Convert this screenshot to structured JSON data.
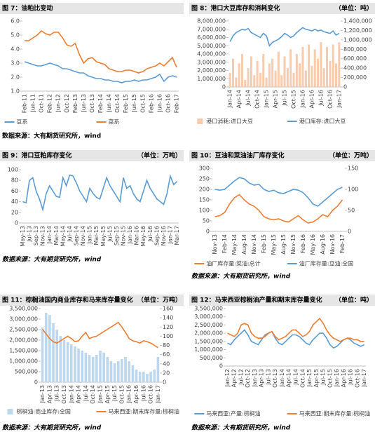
{
  "chart_data": [
    {
      "type": "line",
      "title": "图 7：油粕比变动",
      "source": "数据来源：大有期货研究所，wind",
      "categories": [
        "Feb-11",
        null,
        "Jun-11",
        null,
        "Oct-11",
        null,
        "Feb-12",
        null,
        "Jun-12",
        null,
        "Oct-12",
        null,
        "Feb-13",
        null,
        "Jun-13",
        null,
        "Oct-13",
        null,
        "Feb-14",
        null,
        "Jun-14",
        null,
        "Oct-14",
        null,
        "Feb-15",
        null,
        "Jun-15",
        null,
        "Oct-15",
        null,
        "Feb-16",
        null,
        "Jun-16",
        null,
        "Oct-16",
        null,
        "Feb-17"
      ],
      "series": [
        {
          "name": "豆系",
          "color": "#5b9bd5",
          "values": [
            3.1,
            3.0,
            2.9,
            2.8,
            2.8,
            2.9,
            3.0,
            2.9,
            2.8,
            2.6,
            2.6,
            2.5,
            2.4,
            2.3,
            2.3,
            2.1,
            2.0,
            1.9,
            1.9,
            1.8,
            1.8,
            1.7,
            1.7,
            1.6,
            1.7,
            1.7,
            1.8,
            1.7,
            1.8,
            1.8,
            1.9,
            2.0,
            2.2,
            1.7,
            2.0,
            2.1,
            2.0
          ]
        },
        {
          "name": "菜系",
          "color": "#ed7d31",
          "values": [
            4.6,
            4.6,
            4.8,
            5.0,
            5.3,
            5.1,
            5.0,
            5.2,
            5.2,
            4.8,
            4.3,
            4.2,
            4.4,
            3.6,
            3.0,
            3.3,
            3.4,
            3.1,
            3.0,
            2.9,
            2.6,
            2.5,
            2.4,
            2.4,
            2.5,
            2.5,
            2.4,
            2.3,
            2.4,
            2.6,
            2.7,
            2.8,
            3.0,
            2.8,
            3.1,
            3.4,
            2.7
          ]
        }
      ],
      "ylim": [
        1,
        6
      ],
      "yticks": [
        {
          "value": 1,
          "label": "1.0"
        },
        {
          "value": 2,
          "label": "2.0"
        },
        {
          "value": 3,
          "label": "3.0"
        },
        {
          "value": 4,
          "label": "4.0"
        },
        {
          "value": 5,
          "label": "5.0"
        },
        {
          "value": 6,
          "label": "6.0"
        }
      ]
    },
    {
      "type": "combo",
      "title": "图 8：港口大豆库存和消耗变化",
      "unit": "（单位：吨）",
      "categories": [
        "Jan-14",
        null,
        null,
        "Apr-14",
        null,
        null,
        "Jul-14",
        null,
        null,
        "Oct-14",
        null,
        null,
        "Jan-15",
        null,
        null,
        "Apr-15",
        null,
        null,
        "Jul-15",
        null,
        null,
        "Oct-15",
        null,
        null,
        "Jan-16",
        null,
        null,
        "Apr-16",
        null,
        null,
        "Jul-16",
        null,
        null,
        "Oct-16",
        null,
        null,
        "Jan-17"
      ],
      "series": [
        {
          "name": "港口消耗:进口大豆",
          "type": "bar",
          "axis": "y2",
          "color": "#f8cbad",
          "values": [
            300000,
            600000,
            200000,
            500000,
            700000,
            150000,
            400000,
            650000,
            250000,
            550000,
            300000,
            700000,
            200000,
            500000,
            600000,
            350000,
            750000,
            250000,
            650000,
            400000,
            800000,
            300000,
            700000,
            500000,
            850000,
            350000,
            900000,
            450000,
            800000,
            600000,
            950000,
            400000,
            850000,
            550000,
            900000,
            500000,
            950000
          ]
        },
        {
          "name": "港口库存:进口大豆",
          "type": "line",
          "color": "#5b9bd5",
          "values": [
            5500000,
            6200000,
            6600000,
            6800000,
            7000000,
            6900000,
            7100000,
            6600000,
            6400000,
            6200000,
            6000000,
            6500000,
            6200000,
            5000000,
            5400000,
            5600000,
            5800000,
            6100000,
            6500000,
            6300000,
            6000000,
            6200000,
            6600000,
            6900000,
            7200000,
            7000000,
            6900000,
            6800000,
            7000000,
            6800000,
            6900000,
            6700000,
            6600000,
            6500000,
            6800000,
            6300000,
            6500000
          ]
        }
      ],
      "ylim": [
        0,
        8000000
      ],
      "yticks": [
        0,
        {
          "value": 1000000,
          "label": "1,000,000"
        },
        {
          "value": 2000000,
          "label": "2,000,000"
        },
        {
          "value": 3000000,
          "label": "3,000,000"
        },
        {
          "value": 4000000,
          "label": "4,000,000"
        },
        {
          "value": 5000000,
          "label": "5,000,000"
        },
        {
          "value": 6000000,
          "label": "6,000,000"
        },
        {
          "value": 7000000,
          "label": "7,000,000"
        },
        {
          "value": 8000000,
          "label": "8,000,000"
        }
      ],
      "y2lim": [
        0,
        1400000
      ],
      "y2ticks": [
        0,
        {
          "value": 200000,
          "label": "200,000"
        },
        {
          "value": 400000,
          "label": "400,000"
        },
        {
          "value": 600000,
          "label": "600,000"
        },
        {
          "value": 800000,
          "label": "800,000"
        },
        {
          "value": 1000000,
          "label": "1,000,000"
        },
        {
          "value": 1200000,
          "label": "1,200,000"
        },
        {
          "value": 1400000,
          "label": "1,400,000"
        }
      ]
    },
    {
      "type": "line",
      "title": "图 9：港口豆粕库存变化",
      "unit": "（单位：万吨）",
      "source": "数据来源：大有期货研究所，wind",
      "categories": [
        "May-13",
        null,
        "Jul-13",
        null,
        "Sep-13",
        null,
        "Nov-13",
        null,
        "Jan-14",
        null,
        "Mar-14",
        null,
        "May-14",
        null,
        "Jul-14",
        null,
        "Sep-14",
        null,
        "Nov-14",
        null,
        "Jan-15",
        null,
        "Mar-15",
        null,
        "May-15",
        null,
        "Jul-15",
        null,
        "Sep-15",
        null,
        "Nov-15",
        null,
        "Jan-16",
        null,
        "Mar-16",
        null,
        "May-16",
        null,
        "Jul-16",
        null,
        "Sep-16",
        null,
        "Nov-16",
        null,
        "Jan-17",
        null,
        "Mar-17"
      ],
      "series": [
        {
          "name": "港口豆粕库存",
          "color": "#5b9bd5",
          "values": [
            40,
            38,
            80,
            85,
            60,
            45,
            25,
            55,
            70,
            60,
            50,
            48,
            85,
            70,
            90,
            88,
            75,
            60,
            50,
            40,
            65,
            55,
            48,
            45,
            65,
            85,
            70,
            60,
            50,
            40,
            85,
            65,
            70,
            55,
            45,
            40,
            60,
            80,
            65,
            55,
            45,
            40,
            35,
            55,
            88,
            72,
            78
          ]
        }
      ],
      "legend": false,
      "ylim": [
        0,
        100
      ],
      "yticks": [
        0,
        20,
        40,
        60,
        80,
        100
      ]
    },
    {
      "type": "line",
      "title": "图 10：豆油和菜油油厂库存变化",
      "unit": "（单位：万吨）",
      "source": "数据来源：大有期货研究所，wind",
      "categories": [
        "Nov-13",
        null,
        "Feb-14",
        null,
        "May-14",
        null,
        "Aug-14",
        null,
        "Nov-14",
        null,
        "Feb-15",
        null,
        "May-15",
        null,
        "Aug-15",
        null,
        "Nov-15",
        null,
        "Feb-16",
        null,
        "May-16",
        null,
        "Aug-16",
        null,
        "Nov-16",
        null,
        "Feb-17"
      ],
      "series": [
        {
          "name": "油厂库存量:菜油:总计",
          "color": "#ed7d31",
          "values": [
            70,
            75,
            90,
            130,
            160,
            175,
            150,
            130,
            120,
            100,
            70,
            60,
            55,
            60,
            50,
            45,
            60,
            75,
            55,
            40,
            45,
            60,
            80,
            70,
            100,
            120,
            150
          ]
        },
        {
          "name": "油厂库存量:豆油:全国",
          "color": "#5b9bd5",
          "axis": "y2",
          "values": [
            100,
            98,
            100,
            110,
            120,
            128,
            125,
            115,
            110,
            112,
            100,
            95,
            98,
            92,
            90,
            95,
            100,
            98,
            92,
            80,
            65,
            60,
            70,
            80,
            90,
            100,
            105
          ]
        }
      ],
      "ylim": [
        0,
        300
      ],
      "yticks": [
        0,
        50,
        100,
        150,
        200,
        250,
        300
      ],
      "y2lim": [
        0,
        150
      ],
      "y2ticks": [
        0,
        50,
        100,
        150
      ]
    },
    {
      "type": "combo",
      "title": "图 11：棕榈油国内商业库存和马来库存量变化",
      "unit": "（单位：万吨）",
      "source": "数据来源：大有期货研究所，wind",
      "categories": [
        "Jan-13",
        null,
        "Apr-13",
        null,
        "Jul-13",
        null,
        "Oct-13",
        null,
        "Jan-14",
        null,
        "Apr-14",
        null,
        "Jul-14",
        null,
        "Oct-14",
        null,
        "Jan-15",
        null,
        "Apr-15",
        null,
        "Jul-15",
        null,
        "Oct-15",
        null,
        "Jan-16",
        null,
        "Apr-16",
        null,
        "Jul-16",
        null,
        "Oct-16",
        null,
        "Jan-17"
      ],
      "series": [
        {
          "name": "棕榈油:商业库存:全国",
          "type": "bar",
          "color": "#bdd7ee",
          "values": [
            2600000,
            3300000,
            3200000,
            2800000,
            2500000,
            2200000,
            2000000,
            1900000,
            1800000,
            1700000,
            1600000,
            1500000,
            1400000,
            1300000,
            1200000,
            1300000,
            1500000,
            1400000,
            1200000,
            1000000,
            900000,
            1000000,
            1100000,
            1200000,
            1000000,
            800000,
            600000,
            500000,
            500000,
            400000,
            500000,
            600000,
            1200000
          ]
        },
        {
          "name": "马来西亚:期末库存量:棕榈油",
          "type": "line",
          "axis": "y2",
          "color": "#ed7d31",
          "values": [
            115,
            105,
            95,
            88,
            85,
            90,
            95,
            100,
            95,
            88,
            90,
            100,
            108,
            95,
            98,
            100,
            105,
            110,
            115,
            120,
            125,
            130,
            120,
            108,
            95,
            90,
            88,
            85,
            90,
            88,
            85,
            80,
            75
          ]
        }
      ],
      "ylim": [
        0,
        3500000
      ],
      "yticks": [
        0,
        {
          "value": 500000,
          "label": "500,000"
        },
        {
          "value": 1000000,
          "label": "1,000,000"
        },
        {
          "value": 1500000,
          "label": "1,500,000"
        },
        {
          "value": 2000000,
          "label": "2,000,000"
        },
        {
          "value": 2500000,
          "label": "2,500,000"
        },
        {
          "value": 3000000,
          "label": "3,000,000"
        },
        {
          "value": 3500000,
          "label": "3,500,000"
        }
      ],
      "y2lim": [
        0,
        160
      ],
      "y2ticks": [
        0,
        20,
        40,
        60,
        80,
        100,
        120,
        140,
        160
      ]
    },
    {
      "type": "line",
      "title": "图 12：马来西亚棕榈油产量和期末库存量变化",
      "unit": "（单位：吨）",
      "source": "数据来源：大有期货研究所，wind",
      "categories": [
        "Jan-12",
        null,
        "Apr-12",
        null,
        "Jul-12",
        null,
        "Oct-12",
        null,
        "Jan-13",
        null,
        "Apr-13",
        null,
        "Jul-13",
        null,
        "Oct-13",
        null,
        "Jan-14",
        null,
        "Apr-14",
        null,
        "Jul-14",
        null,
        "Oct-14",
        null,
        "Jan-15",
        null,
        "Apr-15",
        null,
        "Jul-15",
        null,
        "Oct-15",
        null,
        "Jan-16",
        null,
        "Apr-16",
        null,
        "Jul-16",
        null,
        "Oct-16",
        null,
        "Jan-17"
      ],
      "series": [
        {
          "name": "马来西亚:产量:棕榈油",
          "color": "#5b9bd5",
          "values": [
            1400000,
            1300000,
            1600000,
            1800000,
            2000000,
            2200000,
            1900000,
            1500000,
            1400000,
            1300000,
            1600000,
            1900000,
            2000000,
            2100000,
            1700000,
            1400000,
            1300000,
            1500000,
            1700000,
            1900000,
            1900000,
            1800000,
            1600000,
            1400000,
            1300000,
            1600000,
            1800000,
            2000000,
            2000000,
            1700000,
            1300000,
            1100000,
            1200000,
            1400000,
            1600000,
            1700000,
            1600000,
            1400000,
            1300000,
            1200000,
            1300000
          ]
        },
        {
          "name": "马来西亚:期末库存量:棕榈油",
          "color": "#ed7d31",
          "values": [
            2000000,
            1900000,
            1800000,
            2000000,
            2500000,
            2600000,
            2500000,
            2000000,
            1800000,
            1700000,
            1700000,
            1800000,
            2000000,
            2100000,
            1800000,
            1600000,
            1700000,
            1800000,
            2000000,
            2200000,
            2200000,
            2000000,
            1800000,
            1900000,
            2100000,
            2500000,
            2700000,
            2900000,
            2600000,
            2200000,
            1900000,
            1700000,
            1600000,
            1500000,
            1600000,
            1700000,
            1700000,
            1600000,
            1600000,
            1500000,
            1500000
          ]
        }
      ],
      "ylim": [
        0,
        3500000
      ],
      "yticks": [
        0,
        {
          "value": 500000,
          "label": "500,000"
        },
        {
          "value": 1000000,
          "label": "1,000,000"
        },
        {
          "value": 1500000,
          "label": "1,500,000"
        },
        {
          "value": 2000000,
          "label": "2,000,000"
        },
        {
          "value": 2500000,
          "label": "2,500,000"
        },
        {
          "value": 3000000,
          "label": "3,000,000"
        },
        {
          "value": 3500000,
          "label": "3,500,000"
        }
      ]
    }
  ]
}
